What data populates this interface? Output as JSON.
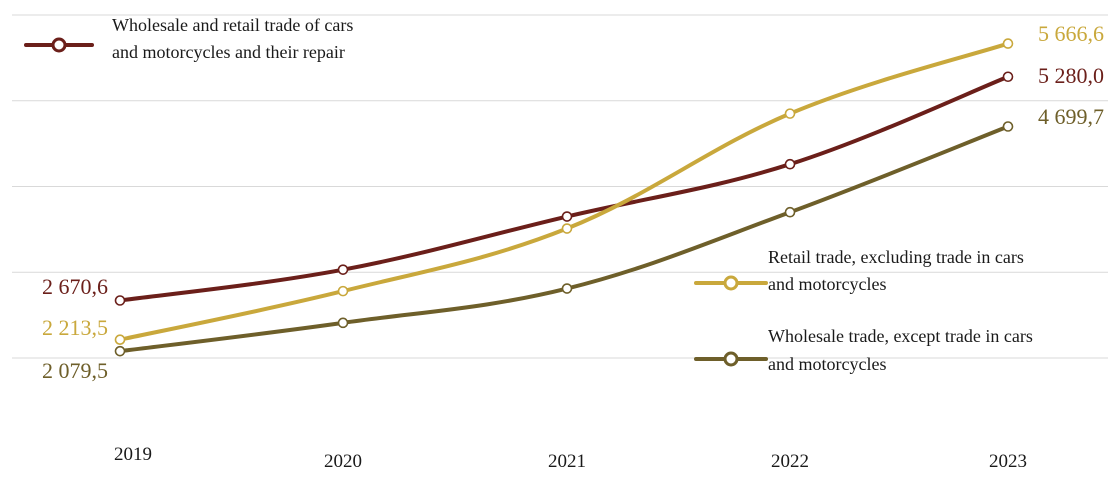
{
  "chart_data": {
    "type": "line",
    "categories": [
      "2019",
      "2020",
      "2021",
      "2022",
      "2023"
    ],
    "ylim": [
      2000,
      6000
    ],
    "grid": true,
    "series": [
      {
        "name": "Wholesale and retail trade of cars and motorcycles and their repair",
        "legend_lines": [
          "Wholesale and retail trade of cars",
          "and motorcycles and their repair"
        ],
        "color": "#6b1f1a",
        "values": [
          2670.6,
          3030,
          3650,
          4260,
          5280.0
        ],
        "end_labels": {
          "first": "2 670,6",
          "last": "5 280,0"
        }
      },
      {
        "name": "Retail trade, excluding trade in cars and motorcycles",
        "legend_lines": [
          "Retail trade, excluding trade in cars",
          "and motorcycles"
        ],
        "color": "#c9a83c",
        "values": [
          2213.5,
          2780,
          3510,
          4850,
          5666.6
        ],
        "end_labels": {
          "first": "2 213,5",
          "last": "5 666,6"
        }
      },
      {
        "name": "Wholesale trade, except trade in cars and motorcycles",
        "legend_lines": [
          "Wholesale trade, except trade in cars",
          "and motorcycles"
        ],
        "color": "#6e5f2a",
        "values": [
          2079.5,
          2410,
          2810,
          3700,
          4699.7
        ],
        "end_labels": {
          "first": "2 079,5",
          "last": "4 699,7"
        }
      }
    ]
  }
}
